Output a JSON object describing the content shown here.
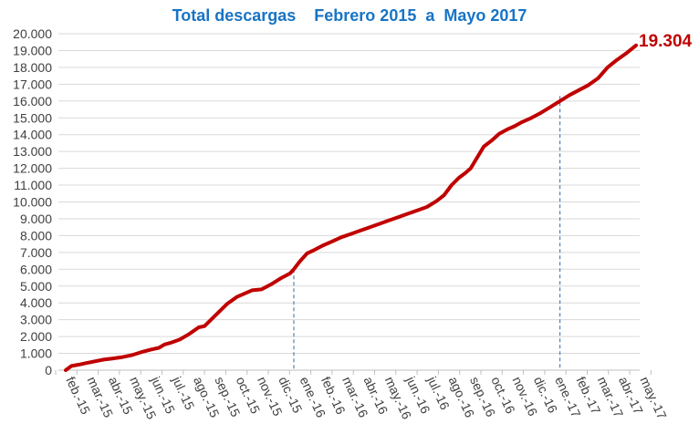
{
  "chart_data": {
    "type": "line",
    "title": "Total descargas    Febrero 2015  a  Mayo 2017",
    "xlabel": "",
    "ylabel": "",
    "ylim": [
      0,
      20000
    ],
    "y_ticks": [
      "0",
      "1.000",
      "2.000",
      "3.000",
      "4.000",
      "5.000",
      "6.000",
      "7.000",
      "8.000",
      "9.000",
      "10.000",
      "11.000",
      "12.000",
      "13.000",
      "14.000",
      "15.000",
      "16.000",
      "17.000",
      "18.000",
      "19.000",
      "20.000"
    ],
    "categories": [
      "feb.-15",
      "mar.-15",
      "abr.-15",
      "may.-15",
      "jun.-15",
      "jul.-15",
      "ago.-15",
      "sep.-15",
      "oct.-15",
      "nov.-15",
      "dic.-15",
      "ene.-16",
      "feb.-16",
      "mar.-16",
      "abr.-16",
      "may.-16",
      "jun.-16",
      "jul.-16",
      "ago.-16",
      "sep.-16",
      "oct.-16",
      "nov.-16",
      "dic.-16",
      "ene.-17",
      "feb.-17",
      "mar.-17",
      "abr.-17",
      "may.-17"
    ],
    "grid": true,
    "series": [
      {
        "name": "",
        "color": "#c00000",
        "points": [
          [
            0,
            0
          ],
          [
            0.3,
            250
          ],
          [
            0.7,
            330
          ],
          [
            1,
            400
          ],
          [
            1.5,
            520
          ],
          [
            2,
            630
          ],
          [
            2.5,
            700
          ],
          [
            3,
            780
          ],
          [
            3.5,
            900
          ],
          [
            4,
            1080
          ],
          [
            4.5,
            1230
          ],
          [
            4.9,
            1330
          ],
          [
            5.2,
            1530
          ],
          [
            5.5,
            1620
          ],
          [
            6,
            1820
          ],
          [
            6.5,
            2150
          ],
          [
            7,
            2550
          ],
          [
            7.3,
            2620
          ],
          [
            7.6,
            2950
          ],
          [
            8,
            3400
          ],
          [
            8.5,
            3950
          ],
          [
            9,
            4350
          ],
          [
            9.4,
            4550
          ],
          [
            9.8,
            4750
          ],
          [
            10.3,
            4800
          ],
          [
            10.8,
            5100
          ],
          [
            11.3,
            5450
          ],
          [
            11.8,
            5750
          ],
          [
            12,
            6000
          ],
          [
            12.3,
            6450
          ],
          [
            12.7,
            6950
          ],
          [
            13,
            7100
          ],
          [
            13.5,
            7400
          ],
          [
            14,
            7650
          ],
          [
            14.5,
            7900
          ],
          [
            15,
            8100
          ],
          [
            15.5,
            8300
          ],
          [
            16,
            8500
          ],
          [
            16.5,
            8700
          ],
          [
            17,
            8900
          ],
          [
            17.5,
            9100
          ],
          [
            18,
            9300
          ],
          [
            18.5,
            9500
          ],
          [
            19,
            9700
          ],
          [
            19.5,
            10050
          ],
          [
            19.9,
            10400
          ],
          [
            20.3,
            11000
          ],
          [
            20.7,
            11450
          ],
          [
            21,
            11700
          ],
          [
            21.3,
            12000
          ],
          [
            21.7,
            12750
          ],
          [
            22,
            13300
          ],
          [
            22.4,
            13650
          ],
          [
            22.8,
            14050
          ],
          [
            23.2,
            14300
          ],
          [
            23.6,
            14500
          ],
          [
            24,
            14750
          ],
          [
            24.5,
            15000
          ],
          [
            25,
            15300
          ],
          [
            25.5,
            15650
          ],
          [
            26,
            16000
          ],
          [
            26.5,
            16350
          ],
          [
            27,
            16650
          ],
          [
            27.5,
            16950
          ],
          [
            28,
            17350
          ],
          [
            28.5,
            18000
          ],
          [
            29,
            18450
          ],
          [
            29.5,
            18850
          ],
          [
            30,
            19304
          ]
        ]
      }
    ],
    "reference_lines": [
      {
        "x": 12,
        "y": 6000
      },
      {
        "x": 26,
        "y": 16300
      }
    ],
    "end_label": "19.304"
  }
}
